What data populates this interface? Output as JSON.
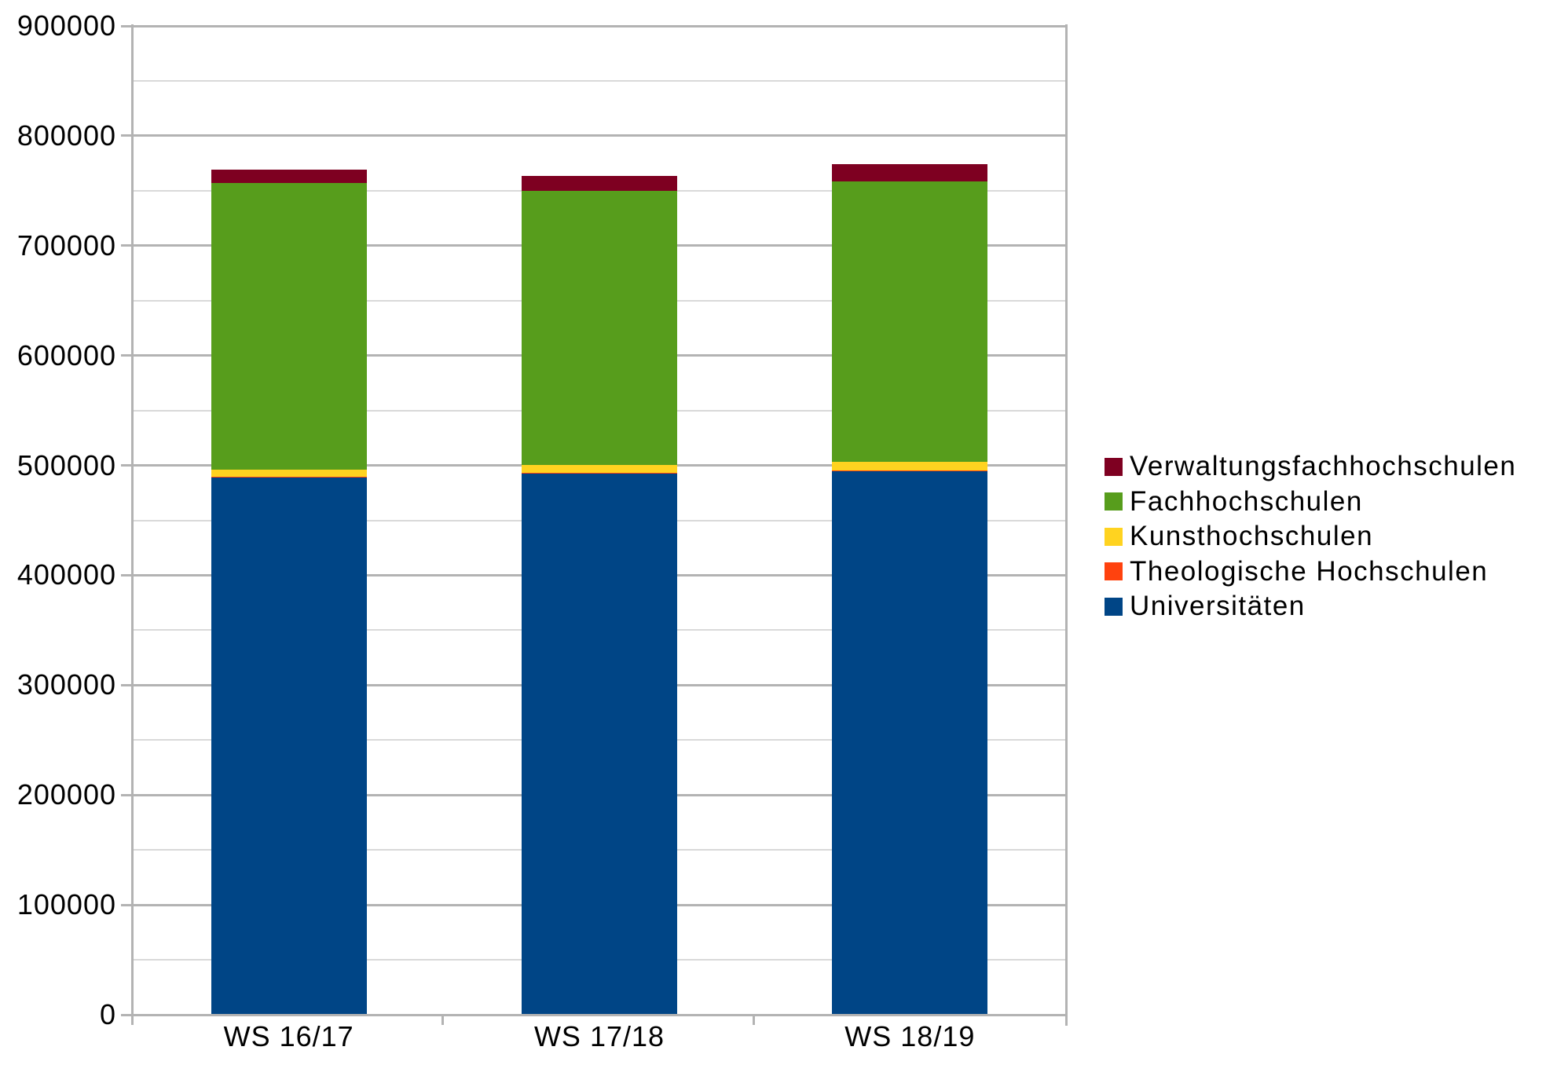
{
  "chart_data": {
    "type": "bar",
    "stacked": true,
    "title": "",
    "xlabel": "",
    "ylabel": "",
    "categories": [
      "WS 16/17",
      "WS 17/18",
      "WS 18/19"
    ],
    "series": [
      {
        "name": "Universitäten",
        "color": "#004586",
        "values": [
          489000,
          493000,
          495000
        ]
      },
      {
        "name": "Theologische Hochschulen",
        "color": "#FF420E",
        "values": [
          500,
          500,
          500
        ]
      },
      {
        "name": "Kunsthochschulen",
        "color": "#FFD320",
        "values": [
          6500,
          7000,
          7500
        ]
      },
      {
        "name": "Fachhochschulen",
        "color": "#579D1C",
        "values": [
          261000,
          249500,
          255500
        ]
      },
      {
        "name": "Verwaltungsfachhochschulen",
        "color": "#7E0021",
        "values": [
          12400,
          13800,
          15700
        ]
      }
    ],
    "y_axis": {
      "min": 0,
      "max": 900000,
      "major_step": 100000,
      "minor_step": 50000,
      "tick_labels": [
        "0",
        "100000",
        "200000",
        "300000",
        "400000",
        "500000",
        "600000",
        "700000",
        "800000",
        "900000"
      ]
    },
    "legend": {
      "position": "right",
      "order_top_to_bottom": [
        "Verwaltungsfachhochschulen",
        "Fachhochschulen",
        "Kunsthochschulen",
        "Theologische Hochschulen",
        "Universitäten"
      ]
    },
    "grid": {
      "major_color": "#b3b3b3",
      "minor_color": "#d9d9d9",
      "axis_color": "#b3b3b3",
      "background": "#ffffff"
    }
  }
}
